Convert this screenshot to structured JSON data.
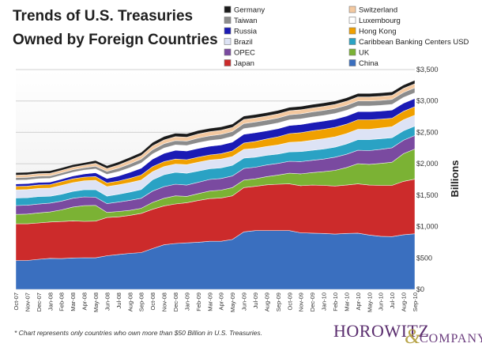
{
  "title_line1": "Trends of U.S. Treasuries",
  "title_line2": "Owned by Foreign Countries",
  "ylabel": "Billions",
  "footnote": "* Chart represents only countries who own more than $50 Billion in U.S. Treasuries.",
  "brand": {
    "part1": "HOROWITZ",
    "amp": "&",
    "part2": "COMPANY"
  },
  "legend": [
    {
      "label": "Germany",
      "color": "#1a1a1a"
    },
    {
      "label": "Switzerland",
      "color": "#f4c9a0"
    },
    {
      "label": "Taiwan",
      "color": "#8c8c8c"
    },
    {
      "label": "Luxembourg",
      "color": "#ffffff"
    },
    {
      "label": "Russia",
      "color": "#1b1bb5"
    },
    {
      "label": "Hong Kong",
      "color": "#f0a000"
    },
    {
      "label": "Brazil",
      "color": "#dde3f5"
    },
    {
      "label": "Caribbean Banking Centers USD",
      "color": "#2aa2c4"
    },
    {
      "label": "OPEC",
      "color": "#7a4aa0"
    },
    {
      "label": "UK",
      "color": "#7bb234"
    },
    {
      "label": "Japan",
      "color": "#cc2b2b"
    },
    {
      "label": "China",
      "color": "#3a6fbf"
    }
  ],
  "chart_data": {
    "type": "area",
    "stacked": true,
    "title": "Trends of U.S. Treasuries Owned by Foreign Countries",
    "ylabel": "Billions",
    "ylim": [
      0,
      3500
    ],
    "yticks": [
      "$0",
      "$500",
      "$1,000",
      "$1,500",
      "$2,000",
      "$2,500",
      "$3,000",
      "$3,500"
    ],
    "grid": true,
    "legend_position": "top-right",
    "x": [
      "Oct-07",
      "Nov-07",
      "Dec-07",
      "Jan-08",
      "Feb-08",
      "Mar-08",
      "Apr-08",
      "May-08",
      "Jun-08",
      "Jul-08",
      "Aug-08",
      "Sep-08",
      "Oct-08",
      "Nov-08",
      "Dec-08",
      "Jan-09",
      "Feb-09",
      "Mar-09",
      "Apr-09",
      "May-09",
      "Jun-09",
      "Jul-09",
      "Aug-09",
      "Sep-09",
      "Oct-09",
      "Nov-09",
      "Dec-09",
      "Jan-10",
      "Feb-10",
      "Mar-10",
      "Apr-10",
      "May-10",
      "Jun-10",
      "Jul-10",
      "Aug-10",
      "Sep-10"
    ],
    "series": [
      {
        "name": "China",
        "values": [
          459,
          459,
          478,
          493,
          490,
          500,
          503,
          502,
          535,
          555,
          573,
          585,
          650,
          710,
          730,
          740,
          750,
          765,
          765,
          795,
          915,
          935,
          935,
          935,
          935,
          900,
          895,
          890,
          880,
          890,
          895,
          865,
          845,
          840,
          870,
          885
        ]
      },
      {
        "name": "Japan",
        "values": [
          585,
          585,
          580,
          580,
          590,
          590,
          580,
          585,
          610,
          600,
          605,
          625,
          625,
          620,
          630,
          640,
          665,
          680,
          690,
          695,
          705,
          705,
          730,
          740,
          745,
          750,
          765,
          765,
          765,
          770,
          785,
          795,
          810,
          815,
          850,
          870
        ]
      },
      {
        "name": "UK",
        "values": [
          150,
          155,
          160,
          160,
          185,
          220,
          250,
          250,
          80,
          85,
          80,
          80,
          110,
          120,
          130,
          100,
          110,
          120,
          125,
          130,
          120,
          120,
          130,
          145,
          170,
          190,
          200,
          220,
          250,
          280,
          320,
          330,
          350,
          370,
          440,
          480
        ]
      },
      {
        "name": "OPEC",
        "values": [
          140,
          140,
          140,
          140,
          140,
          140,
          140,
          130,
          140,
          150,
          160,
          160,
          180,
          185,
          185,
          180,
          180,
          185,
          185,
          185,
          185,
          185,
          185,
          185,
          190,
          195,
          195,
          200,
          210,
          210,
          215,
          220,
          225,
          230,
          215,
          215
        ]
      },
      {
        "name": "Caribbean Banking Centers USD",
        "values": [
          120,
          120,
          120,
          110,
          110,
          110,
          115,
          120,
          120,
          125,
          130,
          140,
          180,
          190,
          190,
          190,
          180,
          170,
          170,
          170,
          165,
          160,
          155,
          150,
          150,
          160,
          160,
          160,
          160,
          165,
          170,
          175,
          170,
          160,
          150,
          150
        ]
      },
      {
        "name": "Brazil",
        "values": [
          130,
          130,
          130,
          130,
          140,
          140,
          140,
          150,
          150,
          150,
          150,
          150,
          130,
          130,
          130,
          135,
          140,
          140,
          140,
          140,
          140,
          140,
          140,
          145,
          150,
          155,
          160,
          165,
          165,
          165,
          165,
          165,
          170,
          175,
          175,
          175
        ]
      },
      {
        "name": "Hong Kong",
        "values": [
          55,
          55,
          55,
          55,
          60,
          60,
          60,
          60,
          60,
          60,
          70,
          80,
          80,
          80,
          80,
          80,
          80,
          80,
          85,
          90,
          100,
          110,
          120,
          130,
          140,
          145,
          150,
          150,
          150,
          150,
          150,
          150,
          140,
          135,
          135,
          135
        ]
      },
      {
        "name": "Russia",
        "values": [
          40,
          40,
          40,
          40,
          40,
          45,
          50,
          60,
          70,
          80,
          95,
          110,
          120,
          130,
          140,
          140,
          140,
          140,
          140,
          140,
          140,
          140,
          130,
          130,
          130,
          130,
          130,
          130,
          130,
          130,
          130,
          130,
          130,
          130,
          130,
          130
        ]
      },
      {
        "name": "Luxembourg",
        "values": [
          60,
          60,
          60,
          60,
          60,
          60,
          60,
          60,
          65,
          70,
          75,
          80,
          80,
          85,
          85,
          85,
          90,
          90,
          90,
          90,
          90,
          90,
          90,
          90,
          90,
          90,
          90,
          90,
          90,
          90,
          90,
          90,
          90,
          90,
          90,
          90
        ]
      },
      {
        "name": "Taiwan",
        "values": [
          40,
          40,
          40,
          40,
          40,
          40,
          40,
          45,
          50,
          55,
          60,
          65,
          70,
          70,
          70,
          72,
          75,
          75,
          78,
          78,
          80,
          80,
          80,
          80,
          80,
          80,
          80,
          80,
          80,
          80,
          80,
          80,
          80,
          80,
          80,
          80
        ]
      },
      {
        "name": "Switzerland",
        "values": [
          40,
          40,
          40,
          40,
          40,
          40,
          40,
          45,
          45,
          50,
          55,
          55,
          60,
          60,
          62,
          62,
          65,
          65,
          65,
          65,
          65,
          65,
          65,
          65,
          65,
          65,
          65,
          65,
          65,
          65,
          65,
          65,
          65,
          65,
          65,
          65
        ]
      },
      {
        "name": "Germany",
        "values": [
          40,
          40,
          40,
          40,
          40,
          40,
          40,
          45,
          45,
          50,
          50,
          50,
          55,
          55,
          55,
          55,
          55,
          55,
          55,
          55,
          55,
          55,
          55,
          55,
          55,
          55,
          55,
          55,
          55,
          55,
          55,
          55,
          55,
          55,
          55,
          55
        ]
      }
    ]
  }
}
